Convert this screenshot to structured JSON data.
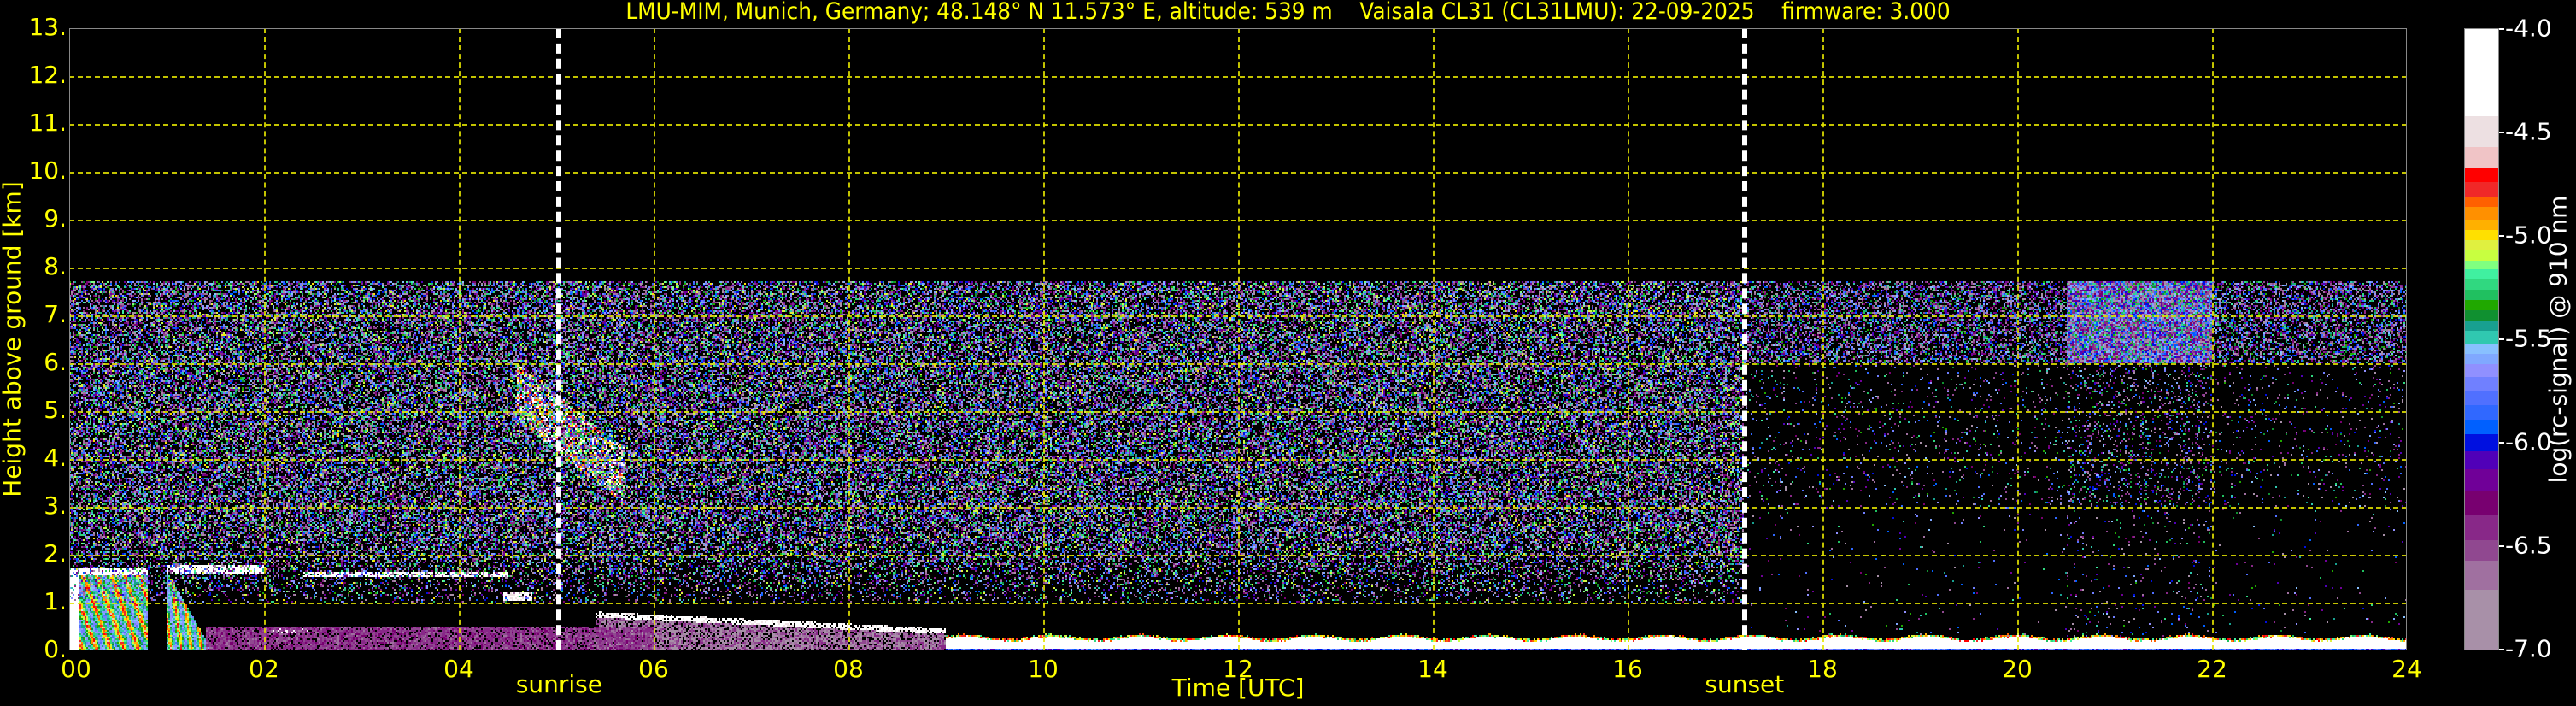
{
  "chart_data": {
    "type": "heatmap",
    "title": "LMU-MIM, Munich, Germany; 48.148° N 11.573° E, altitude: 539 m    Vaisala CL31 (CL31LMU): 22-09-2025    firmware: 3.000",
    "xlabel": "Time [UTC]",
    "ylabel": "Height above ground [km]",
    "xlim": [
      0,
      24
    ],
    "ylim": [
      0,
      13
    ],
    "xticks": [
      0,
      2,
      4,
      6,
      8,
      10,
      12,
      14,
      16,
      18,
      20,
      22,
      24
    ],
    "xtick_labels": [
      "00",
      "02",
      "04",
      "06",
      "08",
      "10",
      "12",
      "14",
      "16",
      "18",
      "20",
      "22",
      "24"
    ],
    "yticks": [
      0,
      1,
      2,
      3,
      4,
      5,
      6,
      7,
      8,
      9,
      10,
      11,
      12,
      13
    ],
    "ytick_labels": [
      "0.",
      "1.",
      "2.",
      "3.",
      "4.",
      "5.",
      "6.",
      "7.",
      "8.",
      "9.",
      "10.",
      "11.",
      "12.",
      "13."
    ],
    "grid": true,
    "grid_color": "#e6e600",
    "background": "#000000",
    "vlines": [
      {
        "label": "sunrise",
        "x": 5.03,
        "color": "#ffffff",
        "style": "dashed"
      },
      {
        "label": "sunset",
        "x": 17.2,
        "color": "#ffffff",
        "style": "dashed"
      }
    ],
    "data_top_km": 7.7,
    "features": [
      {
        "kind": "cloud-deck",
        "t": [
          0.0,
          0.8
        ],
        "h": [
          0.0,
          1.72
        ],
        "value": -4.8
      },
      {
        "kind": "cloud-base",
        "t": [
          1.0,
          2.0
        ],
        "h": [
          1.6,
          1.8
        ],
        "value": -4.1
      },
      {
        "kind": "precip-streaks",
        "t": [
          1.0,
          1.45
        ],
        "h": [
          0.0,
          1.6
        ],
        "value": -5.3
      },
      {
        "kind": "cloud-layer",
        "t": [
          2.05,
          2.45
        ],
        "h": [
          0.35,
          0.45
        ],
        "value": -4.1
      },
      {
        "kind": "cloud-layer",
        "t": [
          2.4,
          4.5
        ],
        "h": [
          1.52,
          1.65
        ],
        "value": -4.1
      },
      {
        "kind": "cloud-layer",
        "t": [
          4.45,
          4.75
        ],
        "h": [
          1.05,
          1.2
        ],
        "value": -4.2
      },
      {
        "kind": "cirrus",
        "t": [
          4.6,
          5.7
        ],
        "h": [
          3.4,
          5.6
        ],
        "value": -4.6
      },
      {
        "kind": "aerosol-layer-top",
        "t": [
          5.4,
          9.0
        ],
        "h_start": 0.75,
        "h_end": 0.4,
        "value": -4.1
      },
      {
        "kind": "aerosol-haze",
        "t": [
          1.4,
          6.0
        ],
        "h": [
          0.0,
          0.5
        ],
        "value": -6.6
      },
      {
        "kind": "boundary-layer",
        "t": [
          9.0,
          24.0
        ],
        "h": [
          0.0,
          0.26
        ],
        "value": -4.2
      },
      {
        "kind": "noise-dense",
        "t": [
          0.0,
          17.2
        ],
        "h": [
          1.0,
          7.7
        ]
      },
      {
        "kind": "noise-sparse",
        "t": [
          17.2,
          24.0
        ],
        "h": [
          0.3,
          6.0
        ]
      }
    ],
    "colorbar": {
      "label": "log(rc-signal) @ 910 nm",
      "range": [
        -7.0,
        -4.0
      ],
      "ticks": [
        -4.0,
        -4.5,
        -5.0,
        -5.5,
        -6.0,
        -6.5,
        -7.0
      ],
      "tick_labels": [
        "-4.0",
        "-4.5",
        "-5.0",
        "-5.5",
        "-6.0",
        "-6.5",
        "-7.0"
      ],
      "segments": [
        {
          "from": -4.42,
          "to": -4.0,
          "color": "#ffffff"
        },
        {
          "from": -4.57,
          "to": -4.42,
          "color": "#ede0e2"
        },
        {
          "from": -4.67,
          "to": -4.57,
          "color": "#f0c4c6"
        },
        {
          "from": -4.74,
          "to": -4.67,
          "color": "#ff0000"
        },
        {
          "from": -4.81,
          "to": -4.74,
          "color": "#f02828"
        },
        {
          "from": -4.86,
          "to": -4.81,
          "color": "#ff6000"
        },
        {
          "from": -4.92,
          "to": -4.86,
          "color": "#ff9000"
        },
        {
          "from": -4.97,
          "to": -4.92,
          "color": "#ffb000"
        },
        {
          "from": -5.02,
          "to": -4.97,
          "color": "#ffe000"
        },
        {
          "from": -5.07,
          "to": -5.02,
          "color": "#e0f040"
        },
        {
          "from": -5.12,
          "to": -5.07,
          "color": "#c8ff40"
        },
        {
          "from": -5.16,
          "to": -5.12,
          "color": "#80ff80"
        },
        {
          "from": -5.21,
          "to": -5.16,
          "color": "#40f0a0"
        },
        {
          "from": -5.26,
          "to": -5.21,
          "color": "#30d880"
        },
        {
          "from": -5.31,
          "to": -5.26,
          "color": "#20c060"
        },
        {
          "from": -5.36,
          "to": -5.31,
          "color": "#20a800"
        },
        {
          "from": -5.41,
          "to": -5.36,
          "color": "#109030"
        },
        {
          "from": -5.46,
          "to": -5.41,
          "color": "#18a090"
        },
        {
          "from": -5.52,
          "to": -5.46,
          "color": "#30c8b0"
        },
        {
          "from": -5.57,
          "to": -5.52,
          "color": "#88c0ff"
        },
        {
          "from": -5.62,
          "to": -5.57,
          "color": "#80a8ff"
        },
        {
          "from": -5.68,
          "to": -5.62,
          "color": "#9090ff"
        },
        {
          "from": -5.75,
          "to": -5.68,
          "color": "#7080ff"
        },
        {
          "from": -5.82,
          "to": -5.75,
          "color": "#5070ff"
        },
        {
          "from": -5.89,
          "to": -5.82,
          "color": "#3068ff"
        },
        {
          "from": -5.96,
          "to": -5.89,
          "color": "#0060ff"
        },
        {
          "from": -6.04,
          "to": -5.96,
          "color": "#0010e0"
        },
        {
          "from": -6.13,
          "to": -6.04,
          "color": "#5000b8"
        },
        {
          "from": -6.23,
          "to": -6.13,
          "color": "#700098"
        },
        {
          "from": -6.35,
          "to": -6.23,
          "color": "#780070"
        },
        {
          "from": -6.47,
          "to": -6.35,
          "color": "#882888"
        },
        {
          "from": -6.57,
          "to": -6.47,
          "color": "#904890"
        },
        {
          "from": -6.71,
          "to": -6.57,
          "color": "#a070a0"
        },
        {
          "from": -7.0,
          "to": -6.71,
          "color": "#a890a8"
        }
      ]
    }
  }
}
